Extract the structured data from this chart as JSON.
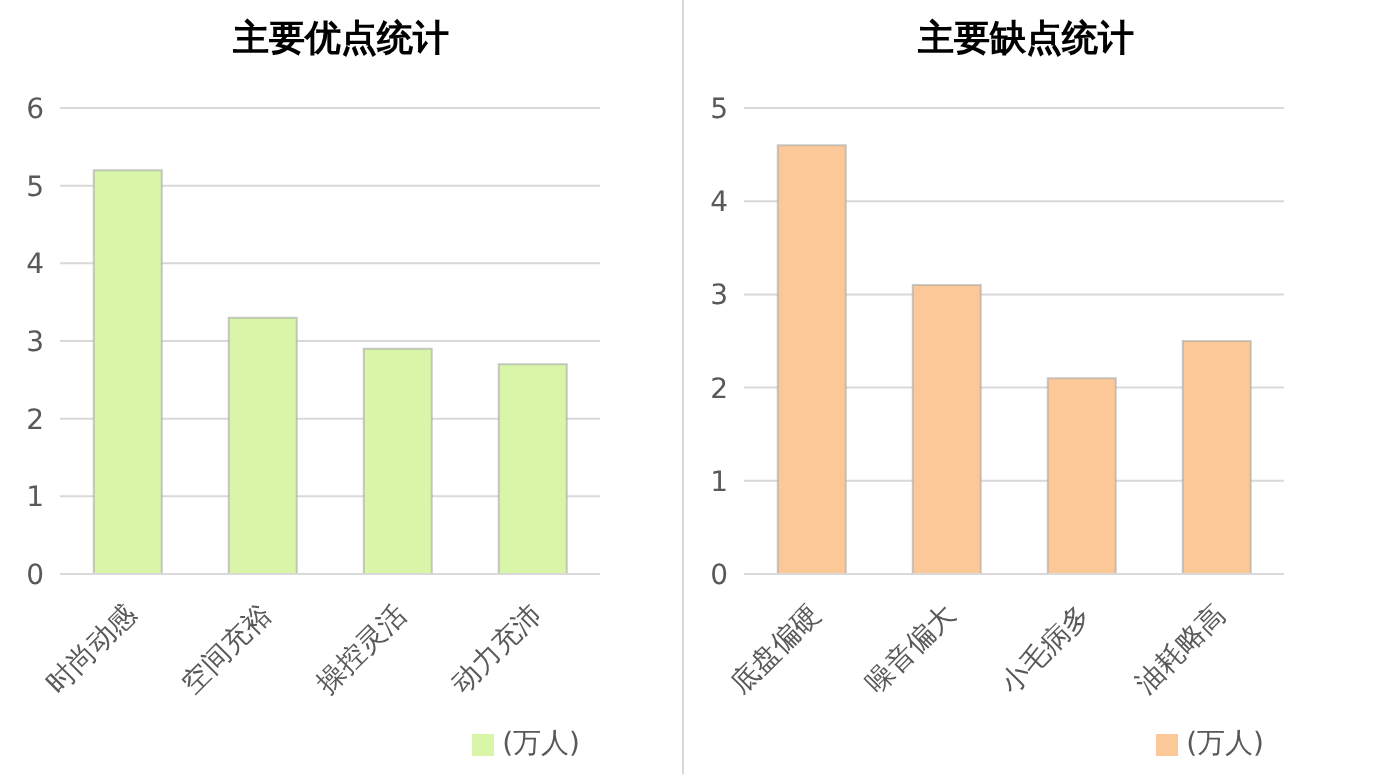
{
  "chart_data": [
    {
      "type": "bar",
      "title": "主要优点统计",
      "categories": [
        "时尚动感",
        "空间充裕",
        "操控灵活",
        "动力充沛"
      ],
      "series": [
        {
          "name": "(万人)",
          "color": "#d8f5a8",
          "values": [
            5.2,
            3.3,
            2.9,
            2.7
          ]
        }
      ],
      "ylim": [
        0,
        6
      ],
      "yticks": [
        0,
        1,
        2,
        3,
        4,
        5,
        6
      ],
      "grid": "y",
      "legend": "bottom right"
    },
    {
      "type": "bar",
      "title": "主要缺点统计",
      "categories": [
        "底盘偏硬",
        "噪音偏大",
        "小毛病多",
        "油耗略高"
      ],
      "series": [
        {
          "name": "(万人)",
          "color": "#fcc898",
          "values": [
            4.6,
            3.1,
            2.1,
            2.5
          ]
        }
      ],
      "ylim": [
        0,
        5
      ],
      "yticks": [
        0,
        1,
        2,
        3,
        4,
        5
      ],
      "grid": "y",
      "legend": "bottom right"
    }
  ]
}
